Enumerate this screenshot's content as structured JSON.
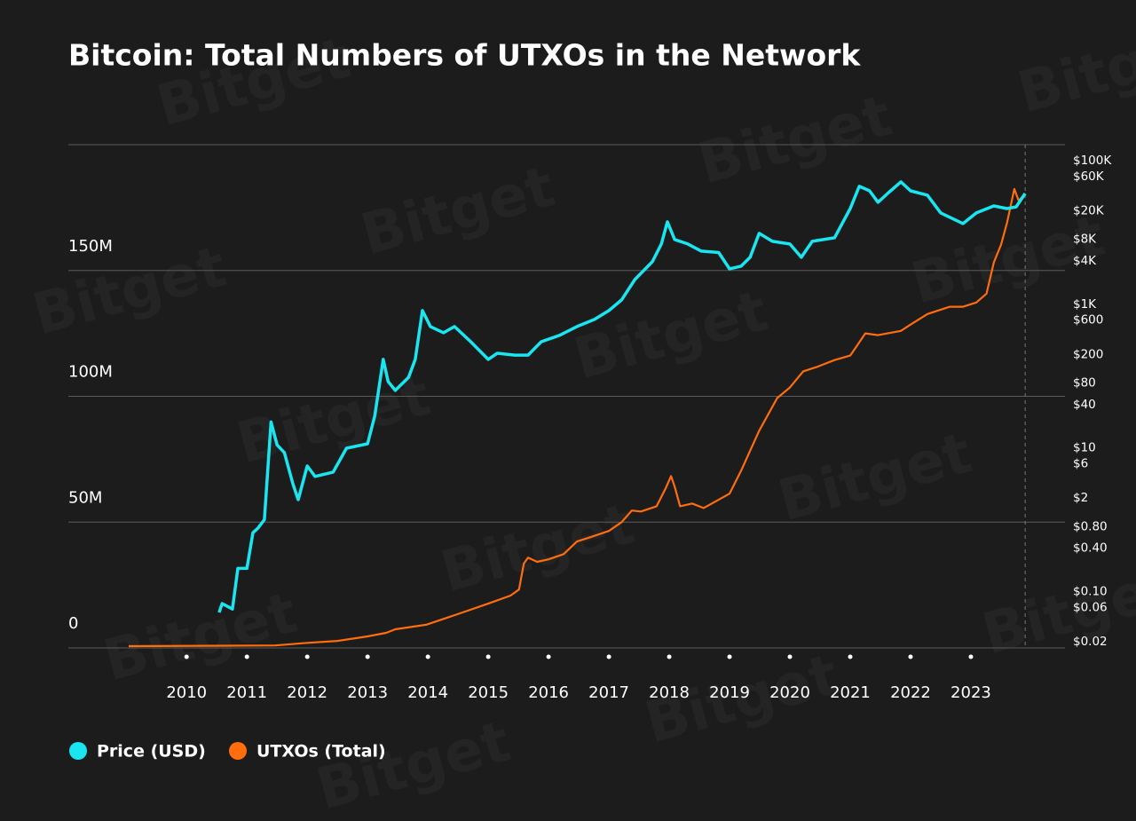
{
  "chart_data": {
    "type": "line",
    "title": "Bitcoin: Total Numbers of UTXOs in the Network",
    "watermark": "Bitget",
    "xlim": [
      2008.04,
      2024.56
    ],
    "xticks": [
      2010,
      2011,
      2012,
      2013,
      2014,
      2015,
      2016,
      2017,
      2018,
      2019,
      2020,
      2021,
      2022,
      2023
    ],
    "ylim": [
      0,
      200000000
    ],
    "yticks": [
      0,
      {
        "value": 50000000,
        "label": "50M"
      },
      {
        "value": 100000000,
        "label": "100M"
      },
      {
        "value": 150000000,
        "label": "150M"
      }
    ],
    "y2lim": [
      0.0164,
      166700
    ],
    "y2scale": "log",
    "y2ticks": [
      {
        "value": 100000,
        "label": "$100K"
      },
      {
        "value": 60000,
        "label": "$60K"
      },
      {
        "value": 20000,
        "label": "$20K"
      },
      {
        "value": 8000,
        "label": "$8K"
      },
      {
        "value": 4000,
        "label": "$4K"
      },
      {
        "value": 1000,
        "label": "$1K"
      },
      {
        "value": 600,
        "label": "$600"
      },
      {
        "value": 200,
        "label": "$200"
      },
      {
        "value": 80,
        "label": "$80"
      },
      {
        "value": 40,
        "label": "$40"
      },
      {
        "value": 10,
        "label": "$10"
      },
      {
        "value": 6,
        "label": "$6"
      },
      {
        "value": 2,
        "label": "$2"
      },
      {
        "value": 0.8,
        "label": "$0.80"
      },
      {
        "value": 0.4,
        "label": "$0.40"
      },
      {
        "value": 0.1,
        "label": "$0.10"
      },
      {
        "value": 0.06,
        "label": "$0.06"
      },
      {
        "value": 0.02,
        "label": "$0.02"
      }
    ],
    "grid": true,
    "series": [
      {
        "name": "Price (USD)",
        "color": "#19e6f0",
        "axis": "y2",
        "x": [
          2010.54,
          2010.59,
          2010.76,
          2010.85,
          2011,
          2011.1,
          2011.18,
          2011.29,
          2011.4,
          2011.5,
          2011.62,
          2011.76,
          2011.85,
          2012,
          2012.13,
          2012.43,
          2012.65,
          2013,
          2013.12,
          2013.26,
          2013.34,
          2013.46,
          2013.68,
          2013.79,
          2013.91,
          2014.04,
          2014.26,
          2014.44,
          2014.71,
          2015,
          2015.15,
          2015.44,
          2015.66,
          2015.88,
          2016.18,
          2016.47,
          2016.76,
          2017,
          2017.21,
          2017.43,
          2017.72,
          2017.87,
          2017.97,
          2018.09,
          2018.31,
          2018.53,
          2018.82,
          2019,
          2019.19,
          2019.34,
          2019.49,
          2019.71,
          2020,
          2020.19,
          2020.37,
          2020.74,
          2021,
          2021.15,
          2021.32,
          2021.46,
          2021.62,
          2021.84,
          2022,
          2022.28,
          2022.5,
          2022.87,
          2023.09,
          2023.38,
          2023.6,
          2023.75,
          2023.9
        ],
        "values": [
          0.051,
          0.068,
          0.057,
          0.21,
          0.21,
          0.66,
          0.76,
          1.0,
          23,
          11,
          8.6,
          3.2,
          1.9,
          5.6,
          4.0,
          4.6,
          9.9,
          11.4,
          28,
          171,
          84,
          63,
          96,
          171,
          817,
          489,
          401,
          489,
          301,
          171,
          208,
          196,
          196,
          301,
          368,
          489,
          614,
          817,
          1148,
          2208,
          3905,
          6900,
          14060,
          7960,
          6900,
          5500,
          5250,
          3110,
          3390,
          4500,
          9720,
          7520,
          6900,
          4500,
          7520,
          8420,
          21500,
          43850,
          38000,
          26300,
          34900,
          50600,
          38000,
          33000,
          18700,
          13300,
          18700,
          23400,
          21500,
          22700,
          34900
        ]
      },
      {
        "name": "UTXOs (Total)",
        "color": "#ff6d0c",
        "axis": "y",
        "x": [
          2009.04,
          2011.47,
          2012,
          2012.5,
          2013,
          2013.31,
          2013.46,
          2013.97,
          2014.49,
          2015,
          2015.37,
          2015.51,
          2015.59,
          2015.66,
          2015.81,
          2016,
          2016.25,
          2016.47,
          2016.69,
          2017,
          2017.21,
          2017.38,
          2017.53,
          2017.79,
          2017.94,
          2018.03,
          2018.09,
          2018.18,
          2018.38,
          2018.57,
          2019,
          2019.19,
          2019.49,
          2019.79,
          2020,
          2020.22,
          2020.44,
          2020.74,
          2021,
          2021.1,
          2021.25,
          2021.46,
          2021.84,
          2022,
          2022.28,
          2022.65,
          2022.87,
          2023.09,
          2023.26,
          2023.38,
          2023.5,
          2023.6,
          2023.72,
          2023.79,
          2023.9
        ],
        "values": [
          700000,
          1000000,
          2000000,
          2800000,
          4600000,
          6000000,
          7400000,
          9200000,
          13400000,
          17600000,
          20800000,
          23200000,
          33500000,
          35900000,
          34200000,
          35200000,
          37300000,
          42300000,
          44000000,
          46500000,
          50000000,
          54600000,
          54200000,
          56300000,
          63400000,
          68300000,
          64100000,
          56300000,
          57400000,
          55600000,
          61300000,
          70400000,
          86300000,
          99300000,
          103500000,
          109900000,
          111600000,
          114400000,
          116200000,
          119700000,
          125000000,
          124300000,
          126000000,
          128500000,
          132700000,
          135600000,
          135600000,
          137300000,
          140800000,
          153200000,
          160200000,
          169000000,
          182400000,
          177800000,
          180300000
        ]
      }
    ]
  }
}
